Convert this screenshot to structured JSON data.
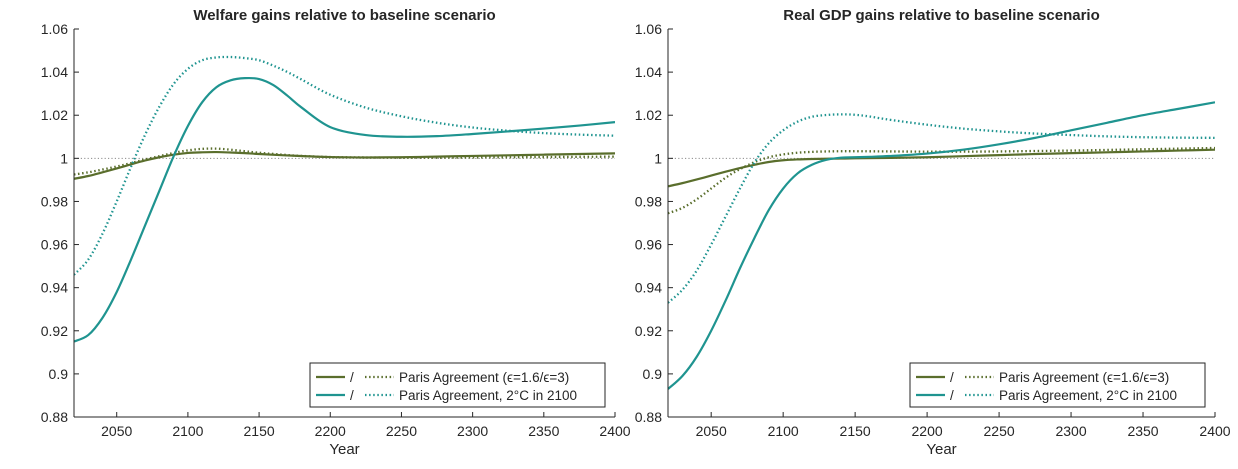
{
  "chart_data": [
    {
      "type": "line",
      "title": "Welfare gains relative to baseline scenario",
      "xlabel": "Year",
      "ylabel": "",
      "xlim": [
        2020,
        2400
      ],
      "ylim": [
        0.88,
        1.06
      ],
      "xticks": [
        "2050",
        "2100",
        "2150",
        "2200",
        "2250",
        "2300",
        "2350",
        "2400"
      ],
      "yticks": [
        "0.88",
        "0.9",
        "0.92",
        "0.94",
        "0.96",
        "0.98",
        "1",
        "1.02",
        "1.04",
        "1.06"
      ],
      "grid": false,
      "legend_position": "bottom-right",
      "legend": [
        {
          "solid_label": "/",
          "dotted_label": "Paris Agreement (ϵ=1.6/ϵ=3)"
        },
        {
          "solid_label": "/",
          "dotted_label": "Paris Agreement, 2°C in 2100"
        }
      ],
      "series": [
        {
          "color": "#5a6e2c",
          "style": "solid",
          "x": [
            2020,
            2030,
            2040,
            2050,
            2060,
            2070,
            2080,
            2090,
            2100,
            2110,
            2120,
            2130,
            2140,
            2150,
            2175,
            2200,
            2225,
            2250,
            2275,
            2300,
            2325,
            2350,
            2375,
            2400
          ],
          "y": [
            0.9905,
            0.9918,
            0.9935,
            0.9953,
            0.9972,
            0.999,
            1.0005,
            1.0017,
            1.0025,
            1.0028,
            1.0029,
            1.0027,
            1.0024,
            1.002,
            1.0012,
            1.0006,
            1.0004,
            1.0005,
            1.0008,
            1.0011,
            1.0014,
            1.0017,
            1.002,
            1.0023
          ]
        },
        {
          "color": "#5a6e2c",
          "style": "dotted",
          "x": [
            2020,
            2030,
            2040,
            2050,
            2060,
            2070,
            2080,
            2090,
            2100,
            2110,
            2120,
            2130,
            2140,
            2150,
            2175,
            2200,
            2225,
            2250,
            2275,
            2300,
            2325,
            2350,
            2375,
            2400
          ],
          "y": [
            0.9925,
            0.9935,
            0.9948,
            0.9962,
            0.9978,
            0.9995,
            1.001,
            1.0025,
            1.0037,
            1.0044,
            1.0045,
            1.004,
            1.0033,
            1.0026,
            1.0013,
            1.0006,
            1.0004,
            1.0003,
            1.0003,
            1.0004,
            1.0005,
            1.0006,
            1.0007,
            1.0008
          ]
        },
        {
          "color": "#1f9490",
          "style": "solid",
          "x": [
            2020,
            2030,
            2040,
            2050,
            2060,
            2070,
            2080,
            2090,
            2100,
            2110,
            2120,
            2130,
            2140,
            2150,
            2160,
            2170,
            2180,
            2200,
            2225,
            2250,
            2275,
            2300,
            2325,
            2350,
            2375,
            2400
          ],
          "y": [
            0.915,
            0.918,
            0.926,
            0.938,
            0.953,
            0.969,
            0.985,
            1.001,
            1.015,
            1.026,
            1.033,
            1.0362,
            1.0372,
            1.0368,
            1.034,
            1.029,
            1.0235,
            1.0145,
            1.0108,
            1.01,
            1.0103,
            1.0113,
            1.0125,
            1.0138,
            1.0152,
            1.0168
          ]
        },
        {
          "color": "#1f9490",
          "style": "dotted",
          "x": [
            2020,
            2030,
            2040,
            2050,
            2060,
            2070,
            2080,
            2090,
            2100,
            2110,
            2120,
            2130,
            2140,
            2150,
            2160,
            2170,
            2180,
            2200,
            2225,
            2250,
            2275,
            2300,
            2325,
            2350,
            2375,
            2400
          ],
          "y": [
            0.946,
            0.953,
            0.965,
            0.98,
            0.996,
            1.011,
            1.024,
            1.0345,
            1.0415,
            1.0455,
            1.0468,
            1.047,
            1.0465,
            1.0455,
            1.043,
            1.04,
            1.0365,
            1.0295,
            1.0235,
            1.0195,
            1.0165,
            1.0143,
            1.0128,
            1.0117,
            1.011,
            1.0105
          ]
        }
      ]
    },
    {
      "type": "line",
      "title": "Real GDP gains relative to baseline scenario",
      "xlabel": "Year",
      "ylabel": "",
      "xlim": [
        2020,
        2400
      ],
      "ylim": [
        0.88,
        1.06
      ],
      "xticks": [
        "2050",
        "2100",
        "2150",
        "2200",
        "2250",
        "2300",
        "2350",
        "2400"
      ],
      "yticks": [
        "0.88",
        "0.9",
        "0.92",
        "0.94",
        "0.96",
        "0.98",
        "1",
        "1.02",
        "1.04",
        "1.06"
      ],
      "grid": false,
      "legend_position": "bottom-right",
      "legend": [
        {
          "solid_label": "/",
          "dotted_label": "Paris Agreement (ϵ=1.6/ϵ=3)"
        },
        {
          "solid_label": "/",
          "dotted_label": "Paris Agreement, 2°C in 2100"
        }
      ],
      "series": [
        {
          "color": "#5a6e2c",
          "style": "solid",
          "x": [
            2020,
            2030,
            2040,
            2050,
            2060,
            2070,
            2080,
            2090,
            2100,
            2110,
            2120,
            2130,
            2140,
            2150,
            2175,
            2200,
            2225,
            2250,
            2275,
            2300,
            2325,
            2350,
            2375,
            2400
          ],
          "y": [
            0.987,
            0.9885,
            0.9902,
            0.992,
            0.9938,
            0.9955,
            0.997,
            0.9983,
            0.9991,
            0.9995,
            0.9997,
            0.9998,
            0.9999,
            1.0,
            1.0002,
            1.0005,
            1.001,
            1.0015,
            1.002,
            1.0024,
            1.0028,
            1.0032,
            1.0036,
            1.004
          ]
        },
        {
          "color": "#5a6e2c",
          "style": "dotted",
          "x": [
            2020,
            2030,
            2040,
            2050,
            2060,
            2070,
            2080,
            2090,
            2100,
            2110,
            2120,
            2130,
            2140,
            2150,
            2175,
            2200,
            2225,
            2250,
            2275,
            2300,
            2325,
            2350,
            2375,
            2400
          ],
          "y": [
            0.9745,
            0.977,
            0.981,
            0.986,
            0.991,
            0.995,
            0.9982,
            1.0005,
            1.0018,
            1.0026,
            1.003,
            1.0032,
            1.0033,
            1.0033,
            1.0032,
            1.0031,
            1.0031,
            1.0032,
            1.0034,
            1.0036,
            1.0039,
            1.0042,
            1.0045,
            1.0048
          ]
        },
        {
          "color": "#1f9490",
          "style": "solid",
          "x": [
            2020,
            2030,
            2040,
            2050,
            2060,
            2070,
            2080,
            2090,
            2100,
            2110,
            2120,
            2130,
            2140,
            2150,
            2160,
            2175,
            2200,
            2225,
            2250,
            2275,
            2300,
            2325,
            2350,
            2375,
            2400
          ],
          "y": [
            0.893,
            0.899,
            0.908,
            0.92,
            0.934,
            0.949,
            0.963,
            0.976,
            0.986,
            0.993,
            0.997,
            0.9993,
            1.0003,
            1.0005,
            1.0007,
            1.0011,
            1.0022,
            1.004,
            1.0065,
            1.0095,
            1.013,
            1.0165,
            1.02,
            1.023,
            1.026
          ]
        },
        {
          "color": "#1f9490",
          "style": "dotted",
          "x": [
            2020,
            2030,
            2040,
            2050,
            2060,
            2070,
            2080,
            2090,
            2100,
            2110,
            2120,
            2130,
            2140,
            2150,
            2160,
            2175,
            2200,
            2225,
            2250,
            2275,
            2300,
            2325,
            2350,
            2375,
            2400
          ],
          "y": [
            0.933,
            0.939,
            0.948,
            0.96,
            0.973,
            0.986,
            0.998,
            1.007,
            1.013,
            1.017,
            1.0193,
            1.0201,
            1.0204,
            1.0202,
            1.0194,
            1.0178,
            1.0156,
            1.0138,
            1.0125,
            1.0115,
            1.0108,
            1.0102,
            1.0098,
            1.0096,
            1.0095
          ]
        }
      ]
    }
  ]
}
